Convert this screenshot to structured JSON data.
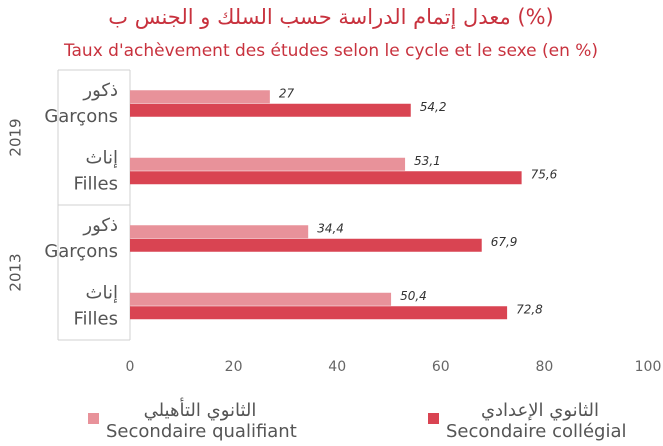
{
  "chart_data": {
    "type": "hbar",
    "title": "معدل إتمام الدراسة حسب السلك و الجنس ب (%)",
    "subtitle": "Taux d'achèvement des études selon le cycle et le sexe (en %)",
    "groups": [
      "2019",
      "2013"
    ],
    "categories": [
      "Garçons",
      "Filles",
      "Garçons",
      "Filles"
    ],
    "categories_ar": [
      "ذكور",
      "إناث",
      "ذكور",
      "إناث"
    ],
    "series": [
      {
        "name": "Secondaire qualifiant",
        "name_ar": "الثانوي التأهيلي",
        "color": "#e8929a",
        "values": [
          27,
          53.1,
          34.4,
          50.4
        ],
        "value_labels": [
          "27",
          "53,1",
          "34,4",
          "50,4"
        ]
      },
      {
        "name": "Secondaire collégial",
        "name_ar": "الثانوي الإعدادي",
        "color": "#d94452",
        "values": [
          54.2,
          75.6,
          67.9,
          72.8
        ],
        "value_labels": [
          "54,2",
          "75,6",
          "67,9",
          "72,8"
        ]
      }
    ],
    "xlim": [
      0,
      100
    ],
    "xticks": [
      0,
      20,
      40,
      60,
      80,
      100
    ]
  }
}
